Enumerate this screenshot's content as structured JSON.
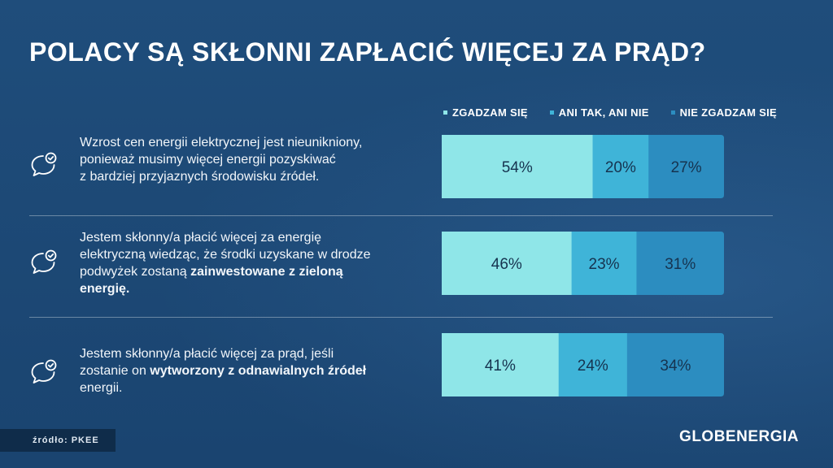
{
  "title": "POLACY SĄ SKŁONNI ZAPŁACIĆ WIĘCEJ ZA PRĄD?",
  "source": "źródło: PKEE",
  "brand": "GLOBENERGIA",
  "colors": {
    "agree": "#8fe6e8",
    "neutral": "#3fb4d8",
    "disagree": "#2c8dc0",
    "value_text": "#16334f"
  },
  "chart_data": {
    "type": "bar",
    "orientation": "horizontal-stacked",
    "legend": [
      "ZGADZAM SIĘ",
      "ANI TAK, ANI NIE",
      "NIE ZGADZAM SIĘ"
    ],
    "legend_position": "top-right",
    "unit": "%",
    "categories": [
      {
        "icon": "chat-check-icon",
        "text_parts": [
          {
            "t": "Wzrost cen energii elektrycznej jest nieunikniony,",
            "b": false,
            "br": true
          },
          {
            "t": "ponieważ musimy więcej energii pozyskiwać",
            "b": false,
            "br": true
          },
          {
            "t": "z bardziej przyjaznych środowisku źródeł.",
            "b": false,
            "br": false
          }
        ]
      },
      {
        "icon": "chat-check-icon",
        "text_parts": [
          {
            "t": "Jestem skłonny/a płacić więcej za energię",
            "b": false,
            "br": true
          },
          {
            "t": "elektryczną wiedząc, że środki uzyskane w drodze",
            "b": false,
            "br": true
          },
          {
            "t": "podwyżek zostaną ",
            "b": false,
            "br": false
          },
          {
            "t": "zainwestowane z zieloną",
            "b": true,
            "br": true
          },
          {
            "t": "energię.",
            "b": true,
            "br": false
          }
        ]
      },
      {
        "icon": "chat-check-icon",
        "text_parts": [
          {
            "t": "Jestem skłonny/a płacić więcej za prąd, jeśli",
            "b": false,
            "br": true
          },
          {
            "t": "zostanie on ",
            "b": false,
            "br": false
          },
          {
            "t": "wytworzony z odnawialnych źródeł",
            "b": true,
            "br": true
          },
          {
            "t": "energii.",
            "b": false,
            "br": false
          }
        ]
      }
    ],
    "series": [
      {
        "name": "ZGADZAM SIĘ",
        "values": [
          54,
          46,
          41
        ],
        "labels": [
          "54%",
          "46%",
          "41%"
        ]
      },
      {
        "name": "ANI TAK, ANI NIE",
        "values": [
          20,
          23,
          24
        ],
        "labels": [
          "20%",
          "23%",
          "24%"
        ]
      },
      {
        "name": "NIE ZGADZAM SIĘ",
        "values": [
          27,
          31,
          34
        ],
        "labels": [
          "27%",
          "31%",
          "34%"
        ]
      }
    ]
  }
}
